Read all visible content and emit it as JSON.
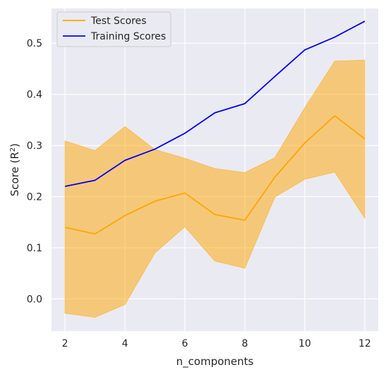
{
  "chart_data": {
    "type": "line",
    "title": "",
    "xlabel": "n_components",
    "ylabel_main": "Score (R",
    "ylabel_sup": "2",
    "ylabel_end": ")",
    "x": [
      2,
      3,
      4,
      5,
      6,
      7,
      8,
      9,
      10,
      11,
      12
    ],
    "xlim": [
      1.55,
      12.45
    ],
    "ylim": [
      -0.063,
      0.568
    ],
    "xticks": [
      2,
      4,
      6,
      8,
      10,
      12
    ],
    "xtick_labels": [
      "2",
      "4",
      "6",
      "8",
      "10",
      "12"
    ],
    "yticks": [
      0.0,
      0.1,
      0.2,
      0.3,
      0.4,
      0.5
    ],
    "ytick_labels": [
      "0.0",
      "0.1",
      "0.2",
      "0.3",
      "0.4",
      "0.5"
    ],
    "grid": true,
    "legend_position": "top-left",
    "series": [
      {
        "name": "Test Scores",
        "color": "#ffa500",
        "values": [
          0.14,
          0.127,
          0.163,
          0.191,
          0.207,
          0.165,
          0.154,
          0.238,
          0.305,
          0.358,
          0.313
        ],
        "band_upper": [
          0.309,
          0.29,
          0.337,
          0.292,
          0.275,
          0.255,
          0.247,
          0.276,
          0.374,
          0.465,
          0.467
        ],
        "band_lower": [
          -0.028,
          -0.036,
          -0.011,
          0.09,
          0.141,
          0.074,
          0.06,
          0.199,
          0.234,
          0.248,
          0.158
        ],
        "band_color": "#ffa500"
      },
      {
        "name": "Training Scores",
        "color": "#0000ff",
        "values": [
          0.22,
          0.232,
          0.271,
          0.293,
          0.324,
          0.364,
          0.382,
          0.435,
          0.487,
          0.512,
          0.543
        ]
      }
    ],
    "plot_background": "#eaeaf2",
    "grid_color": "#ffffff"
  }
}
